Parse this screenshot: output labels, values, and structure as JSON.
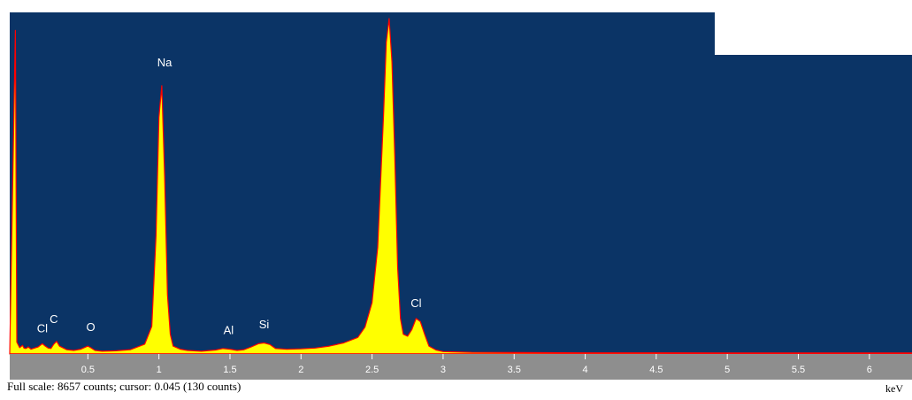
{
  "status": {
    "full_scale_text": "Full scale: 8657 counts; cursor: 0.045 (130 counts)"
  },
  "colors": {
    "plot_background": "#0b3466",
    "spectrum_fill": "#ffff00",
    "spectrum_edge": "#ff0000",
    "axis_band": "#8e8e8e",
    "legend_box": "#ffffff"
  },
  "chart_data": {
    "type": "area",
    "title": "",
    "xlabel": "keV",
    "ylabel": "",
    "xlim": [
      -0.05,
      6.3
    ],
    "ylim": [
      0,
      8657
    ],
    "grid": false,
    "x_ticks": [
      0.5,
      1,
      1.5,
      2,
      2.5,
      3,
      3.5,
      4,
      4.5,
      5,
      5.5,
      6
    ],
    "x_tick_labels": [
      "0.5",
      "1",
      "1.5",
      "2",
      "2.5",
      "3",
      "3.5",
      "4",
      "4.5",
      "5",
      "5.5",
      "6"
    ],
    "series": [
      {
        "x": [
          -0.05,
          -0.01,
          0.0,
          0.02,
          0.04,
          0.05,
          0.06,
          0.07,
          0.08,
          0.1,
          0.15,
          0.18,
          0.2,
          0.22,
          0.24,
          0.26,
          0.28,
          0.3,
          0.35,
          0.4,
          0.45,
          0.5,
          0.52,
          0.55,
          0.6,
          0.7,
          0.8,
          0.9,
          0.95,
          0.98,
          1.0,
          1.02,
          1.04,
          1.06,
          1.08,
          1.1,
          1.15,
          1.2,
          1.3,
          1.4,
          1.45,
          1.5,
          1.55,
          1.6,
          1.65,
          1.7,
          1.74,
          1.78,
          1.82,
          1.9,
          2.0,
          2.1,
          2.2,
          2.3,
          2.4,
          2.45,
          2.5,
          2.54,
          2.58,
          2.6,
          2.62,
          2.64,
          2.66,
          2.68,
          2.7,
          2.72,
          2.75,
          2.78,
          2.81,
          2.84,
          2.87,
          2.9,
          2.95,
          3.0,
          3.2,
          3.5,
          4.0,
          4.5,
          5.0,
          5.5,
          6.0,
          6.3
        ],
        "y": [
          0,
          8200,
          300,
          160,
          220,
          150,
          140,
          150,
          180,
          120,
          180,
          260,
          200,
          150,
          140,
          250,
          320,
          200,
          110,
          90,
          120,
          200,
          160,
          90,
          70,
          80,
          110,
          250,
          700,
          3000,
          6000,
          6800,
          4500,
          1500,
          500,
          200,
          120,
          90,
          70,
          100,
          140,
          120,
          90,
          110,
          180,
          260,
          280,
          240,
          140,
          120,
          130,
          150,
          200,
          280,
          420,
          680,
          1300,
          2700,
          6000,
          7900,
          8500,
          7400,
          5000,
          2200,
          900,
          500,
          450,
          620,
          900,
          820,
          500,
          200,
          100,
          60,
          40,
          35,
          30,
          30,
          28,
          28,
          25,
          25
        ]
      }
    ],
    "peaks": [
      {
        "element": "Cl",
        "x": 0.18,
        "y": 420
      },
      {
        "element": "C",
        "x": 0.26,
        "y": 650
      },
      {
        "element": "O",
        "x": 0.52,
        "y": 450
      },
      {
        "element": "Na",
        "x": 1.04,
        "y": 7150
      },
      {
        "element": "Al",
        "x": 1.49,
        "y": 370
      },
      {
        "element": "Si",
        "x": 1.74,
        "y": 520
      },
      {
        "element": "Cl",
        "x": 2.62,
        "y": 9100
      },
      {
        "element": "Cl",
        "x": 2.81,
        "y": 1050
      }
    ]
  }
}
